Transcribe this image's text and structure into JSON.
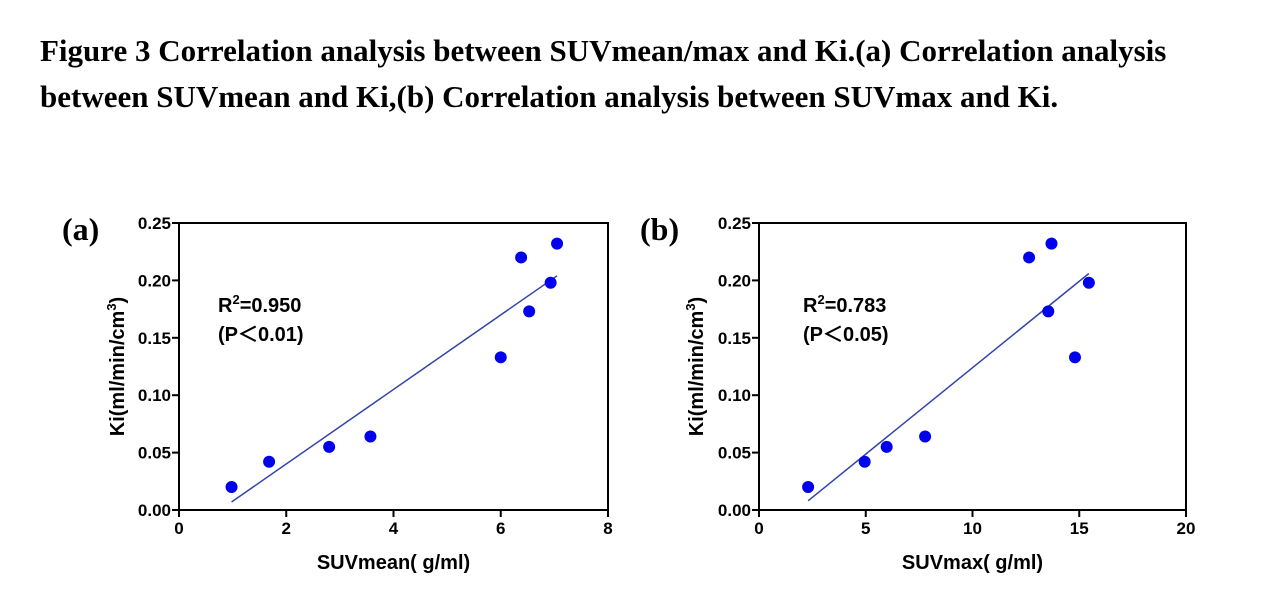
{
  "caption": "Figure 3 Correlation analysis between SUVmean/max and Ki.(a) Correlation analysis between SUVmean and Ki,(b) Correlation analysis between SUVmax and Ki.",
  "colors": {
    "point": "#0000ee",
    "fit_line": "#3344aa",
    "axis": "#000000"
  },
  "chart_data": [
    {
      "type": "scatter",
      "panel_label": "(a)",
      "xlabel": "SUVmean( g/ml)",
      "ylabel": "Ki(ml/min/cm3)",
      "xlim": [
        0,
        8
      ],
      "ylim": [
        0,
        0.25
      ],
      "xticks": [
        0,
        2,
        4,
        6,
        8
      ],
      "yticks": [
        0.0,
        0.05,
        0.1,
        0.15,
        0.2,
        0.25
      ],
      "xtick_labels": [
        "0",
        "2",
        "4",
        "6",
        "8"
      ],
      "ytick_labels": [
        "0.00",
        "0.05",
        "0.10",
        "0.15",
        "0.20",
        "0.25"
      ],
      "points": [
        {
          "x": 0.98,
          "y": 0.02
        },
        {
          "x": 1.68,
          "y": 0.042
        },
        {
          "x": 2.8,
          "y": 0.055
        },
        {
          "x": 3.57,
          "y": 0.064
        },
        {
          "x": 6.0,
          "y": 0.133
        },
        {
          "x": 6.38,
          "y": 0.22
        },
        {
          "x": 6.53,
          "y": 0.173
        },
        {
          "x": 6.93,
          "y": 0.198
        },
        {
          "x": 7.05,
          "y": 0.232
        }
      ],
      "fit_line": {
        "x": [
          0.98,
          7.05
        ],
        "y": [
          0.007,
          0.204
        ]
      },
      "annotation": {
        "r2_prefix": "R",
        "r2_sup": "2",
        "r2_value": "=0.950",
        "p_text": "(P＜0.01)"
      },
      "grid": false
    },
    {
      "type": "scatter",
      "panel_label": "(b)",
      "xlabel": "SUVmax( g/ml)",
      "ylabel": "Ki(ml/min/cm3)",
      "xlim": [
        0,
        20
      ],
      "ylim": [
        0,
        0.25
      ],
      "xticks": [
        0,
        5,
        10,
        15,
        20
      ],
      "yticks": [
        0.0,
        0.05,
        0.1,
        0.15,
        0.2,
        0.25
      ],
      "xtick_labels": [
        "0",
        "5",
        "10",
        "15",
        "20"
      ],
      "ytick_labels": [
        "0.00",
        "0.05",
        "0.10",
        "0.15",
        "0.20",
        "0.25"
      ],
      "points": [
        {
          "x": 2.3,
          "y": 0.02
        },
        {
          "x": 4.95,
          "y": 0.042
        },
        {
          "x": 5.98,
          "y": 0.055
        },
        {
          "x": 7.78,
          "y": 0.064
        },
        {
          "x": 12.65,
          "y": 0.22
        },
        {
          "x": 13.55,
          "y": 0.173
        },
        {
          "x": 13.7,
          "y": 0.232
        },
        {
          "x": 14.8,
          "y": 0.133
        },
        {
          "x": 15.45,
          "y": 0.198
        }
      ],
      "fit_line": {
        "x": [
          2.3,
          15.45
        ],
        "y": [
          0.008,
          0.206
        ]
      },
      "annotation": {
        "r2_prefix": "R",
        "r2_sup": "2",
        "r2_value": "=0.783",
        "p_text": "(P＜0.05)"
      },
      "grid": false
    }
  ]
}
